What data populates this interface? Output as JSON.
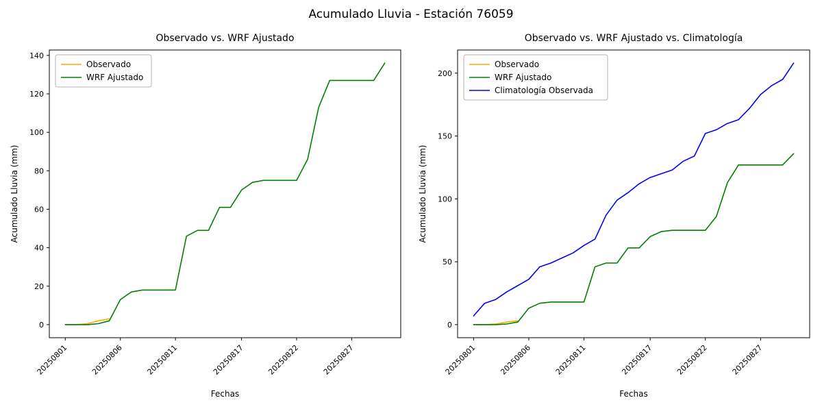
{
  "figure": {
    "suptitle": "Acumulado Lluvia - Estación 76059",
    "background": "#ffffff",
    "text_color": "#000000"
  },
  "colors": {
    "observado": "#FFA500",
    "wrf_ajustado": "#008000",
    "climatologia": "#0000FF",
    "legend_border": "#b3b3b3"
  },
  "chart_data": [
    {
      "type": "line",
      "title": "Observado vs. WRF Ajustado",
      "xlabel": "Fechas",
      "ylabel": "Acumulado Lluvia (mm)",
      "x_tick_labels": [
        "20250801",
        "20250806",
        "20250811",
        "20250817",
        "20250822",
        "20250827"
      ],
      "x_tick_positions": [
        1,
        6,
        11,
        17,
        22,
        27
      ],
      "xlim": [
        -0.45,
        31.45
      ],
      "ylim": [
        -6.8,
        142.8
      ],
      "yticks": [
        0,
        20,
        40,
        60,
        80,
        100,
        120,
        140
      ],
      "grid": false,
      "legend_position": "upper left",
      "series": [
        {
          "name": "Observado",
          "color": "#FFA500",
          "x": [
            1,
            2,
            3,
            4,
            5
          ],
          "values": [
            0,
            0,
            0.5,
            2,
            3
          ]
        },
        {
          "name": "WRF Ajustado",
          "color": "#008000",
          "x": [
            1,
            2,
            3,
            4,
            5,
            6,
            7,
            8,
            9,
            10,
            11,
            12,
            13,
            14,
            15,
            16,
            17,
            18,
            19,
            20,
            21,
            22,
            23,
            24,
            25,
            26,
            27,
            28,
            29,
            30
          ],
          "values": [
            0,
            0,
            0,
            0.5,
            2,
            13,
            17,
            18,
            18,
            18,
            18,
            46,
            49,
            49,
            61,
            61,
            70,
            74,
            75,
            75,
            75,
            75,
            86,
            113,
            127,
            127,
            127,
            127,
            127,
            136
          ]
        }
      ]
    },
    {
      "type": "line",
      "title": "Observado vs. WRF Ajustado vs. Climatología",
      "xlabel": "Fechas",
      "ylabel": "Acumulado Lluvia (mm)",
      "x_tick_labels": [
        "20250801",
        "20250806",
        "20250811",
        "20250817",
        "20250822",
        "20250827"
      ],
      "x_tick_positions": [
        1,
        6,
        11,
        17,
        22,
        27
      ],
      "xlim": [
        -0.45,
        31.45
      ],
      "ylim": [
        -10.4,
        218.4
      ],
      "yticks": [
        0,
        50,
        100,
        150,
        200
      ],
      "grid": false,
      "legend_position": "upper left",
      "series": [
        {
          "name": "Observado",
          "color": "#FFA500",
          "x": [
            1,
            2,
            3,
            4,
            5
          ],
          "values": [
            0,
            0,
            0.5,
            2,
            3
          ]
        },
        {
          "name": "WRF Ajustado",
          "color": "#008000",
          "x": [
            1,
            2,
            3,
            4,
            5,
            6,
            7,
            8,
            9,
            10,
            11,
            12,
            13,
            14,
            15,
            16,
            17,
            18,
            19,
            20,
            21,
            22,
            23,
            24,
            25,
            26,
            27,
            28,
            29,
            30
          ],
          "values": [
            0,
            0,
            0,
            0.5,
            2,
            13,
            17,
            18,
            18,
            18,
            18,
            46,
            49,
            49,
            61,
            61,
            70,
            74,
            75,
            75,
            75,
            75,
            86,
            113,
            127,
            127,
            127,
            127,
            127,
            136
          ]
        },
        {
          "name": "Climatología Observada",
          "color": "#0000FF",
          "x": [
            1,
            2,
            3,
            4,
            5,
            6,
            7,
            8,
            9,
            10,
            11,
            12,
            13,
            14,
            15,
            16,
            17,
            18,
            19,
            20,
            21,
            22,
            23,
            24,
            25,
            26,
            27,
            28,
            29,
            30
          ],
          "values": [
            7,
            17,
            20,
            26,
            31,
            36,
            46,
            49,
            53,
            57,
            63,
            68,
            87,
            99,
            105,
            112,
            117,
            120,
            123,
            130,
            134,
            152,
            155,
            160,
            163,
            172,
            183,
            190,
            195,
            208
          ]
        }
      ]
    }
  ]
}
